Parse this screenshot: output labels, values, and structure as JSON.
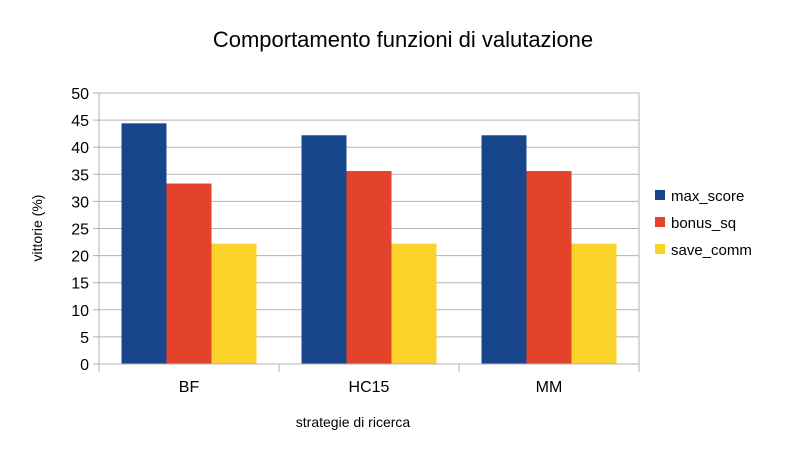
{
  "chart_data": {
    "type": "bar",
    "title": "Comportamento funzioni di valutazione",
    "xlabel": "strategie di ricerca",
    "ylabel": "vittorie (%)",
    "categories": [
      "BF",
      "HC15",
      "MM"
    ],
    "series": [
      {
        "name": "max_score",
        "values": [
          44.4,
          42.2,
          42.2
        ],
        "color": "#17478a"
      },
      {
        "name": "bonus_sq",
        "values": [
          33.3,
          35.6,
          35.6
        ],
        "color": "#e2432a"
      },
      {
        "name": "save_comm",
        "values": [
          22.2,
          22.2,
          22.2
        ],
        "color": "#fad22a"
      }
    ],
    "ylim": [
      0,
      50
    ],
    "yticks": [
      0,
      5,
      10,
      15,
      20,
      25,
      30,
      35,
      40,
      45,
      50
    ],
    "grid": true,
    "legend_position": "right"
  }
}
